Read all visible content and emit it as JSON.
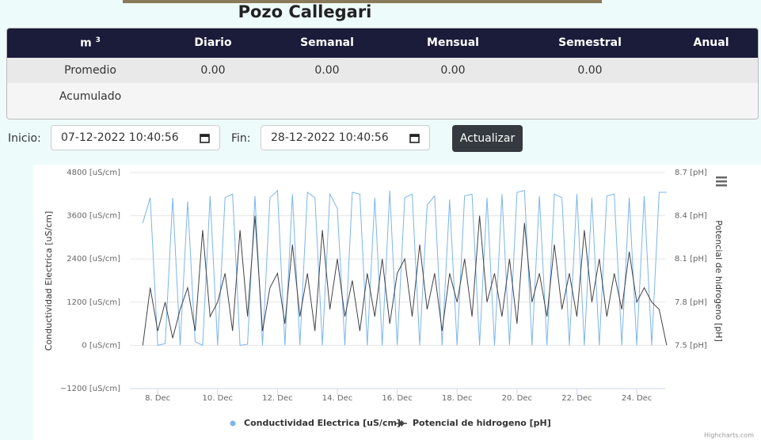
{
  "page": {
    "title": "Pozo Callegari"
  },
  "table": {
    "header": [
      "m",
      "Diario",
      "Semanal",
      "Mensual",
      "Semestral",
      "Anual"
    ],
    "header_sup": "3",
    "rows": [
      [
        "Promedio",
        "0.00",
        "0.00",
        "0.00",
        "0.00",
        ""
      ],
      [
        "Acumulado",
        "",
        "",
        "",
        "",
        ""
      ]
    ]
  },
  "form": {
    "start_label": "Inicio:",
    "start_value": "07-12-2022 10:40:56",
    "end_label": "Fin:",
    "end_value": "28-12-2022 10:40:56",
    "button": "Actualizar"
  },
  "chart_data": {
    "type": "line",
    "credits": "Highcharts.com",
    "y_label": "Conductividad Electrica [uS/cm]",
    "y2_label": "Potencial de hidrogeno [pH]",
    "x": [
      7.5,
      7.75,
      8,
      8.25,
      8.5,
      8.75,
      9,
      9.25,
      9.5,
      9.75,
      10,
      10.25,
      10.5,
      10.75,
      11,
      11.25,
      11.5,
      11.75,
      12,
      12.25,
      12.5,
      12.75,
      13,
      13.25,
      13.5,
      13.75,
      14,
      14.25,
      14.5,
      14.75,
      15,
      15.25,
      15.5,
      15.75,
      16,
      16.25,
      16.5,
      16.75,
      17,
      17.25,
      17.5,
      17.75,
      18,
      18.25,
      18.5,
      18.75,
      19,
      19.25,
      19.5,
      19.75,
      20,
      20.25,
      20.5,
      20.75,
      21,
      21.25,
      21.5,
      21.75,
      22,
      22.25,
      22.5,
      22.75,
      23,
      23.25,
      23.5,
      23.75,
      24,
      24.25,
      24.5,
      24.75,
      25
    ],
    "xlim": [
      7.07,
      24.95
    ],
    "xticks": [
      {
        "value": 8,
        "label": "8. Dec"
      },
      {
        "value": 10,
        "label": "10. Dec"
      },
      {
        "value": 12,
        "label": "12. Dec"
      },
      {
        "value": 14,
        "label": "14. Dec"
      },
      {
        "value": 16,
        "label": "16. Dec"
      },
      {
        "value": 18,
        "label": "18. Dec"
      },
      {
        "value": 20,
        "label": "20. Dec"
      },
      {
        "value": 22,
        "label": "22. Dec"
      },
      {
        "value": 24,
        "label": "24. Dec"
      }
    ],
    "ylim": [
      -1200,
      4800
    ],
    "yticks": [
      {
        "value": -1200,
        "label": "−1200 [uS/cm]"
      },
      {
        "value": 0,
        "label": "0 [uS/cm]"
      },
      {
        "value": 1200,
        "label": "1200 [uS/cm]"
      },
      {
        "value": 2400,
        "label": "2400 [uS/cm]"
      },
      {
        "value": 3600,
        "label": "3600 [uS/cm]"
      },
      {
        "value": 4800,
        "label": "4800 [uS/cm]"
      }
    ],
    "y2lim": [
      7.2,
      8.7
    ],
    "y2ticks": [
      {
        "value": 7.5,
        "label": "7.5 [pH]"
      },
      {
        "value": 7.8,
        "label": "7.8 [pH]"
      },
      {
        "value": 8.1,
        "label": "8.1 [pH]"
      },
      {
        "value": 8.4,
        "label": "8.4 [pH]"
      },
      {
        "value": 8.7,
        "label": "8.7 [pH]"
      }
    ],
    "grid": true,
    "series": [
      {
        "name": "Conductividad Electrica [uS/cm]",
        "color": "#7cb5ec",
        "values": [
          3400,
          4100,
          0,
          50,
          4100,
          0,
          4000,
          100,
          0,
          4150,
          0,
          4100,
          4200,
          0,
          30,
          4150,
          0,
          4100,
          4300,
          0,
          4200,
          0,
          4250,
          4100,
          0,
          4200,
          3800,
          0,
          4250,
          4200,
          0,
          4100,
          0,
          4300,
          0,
          4100,
          4200,
          0,
          3900,
          4150,
          0,
          4050,
          0,
          4150,
          4200,
          0,
          4100,
          0,
          4200,
          0,
          4250,
          4300,
          0,
          4150,
          0,
          4200,
          4100,
          0,
          4200,
          0,
          4100,
          0,
          4150,
          4200,
          0,
          4100,
          0,
          4150,
          0,
          4250,
          4250
        ]
      },
      {
        "name": "Potencial de hidrogeno [pH]",
        "color": "#434348",
        "axis": "y2",
        "values": [
          7.5,
          7.9,
          7.6,
          7.8,
          7.55,
          7.75,
          7.9,
          7.6,
          8.3,
          7.7,
          7.8,
          8.0,
          7.6,
          8.3,
          7.7,
          8.4,
          7.6,
          7.9,
          8.0,
          7.65,
          8.2,
          7.7,
          8.0,
          7.6,
          8.3,
          7.75,
          8.1,
          7.7,
          7.95,
          7.6,
          8.0,
          7.7,
          8.1,
          7.65,
          8.0,
          8.1,
          7.7,
          8.2,
          7.75,
          8.0,
          7.6,
          8.0,
          7.8,
          8.1,
          7.7,
          8.4,
          7.8,
          8.0,
          7.7,
          8.1,
          7.65,
          8.35,
          7.8,
          8.0,
          7.7,
          8.2,
          7.75,
          8.0,
          7.7,
          8.3,
          7.8,
          8.1,
          7.7,
          8.0,
          7.75,
          8.15,
          7.8,
          7.9,
          7.8,
          7.75,
          7.5
        ]
      }
    ]
  }
}
